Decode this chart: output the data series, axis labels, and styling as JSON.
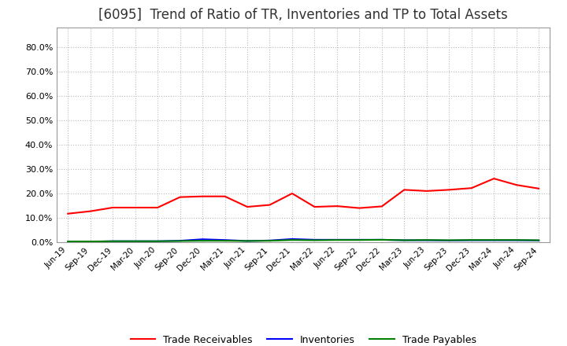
{
  "title": "[6095]  Trend of Ratio of TR, Inventories and TP to Total Assets",
  "title_fontsize": 12,
  "ylim": [
    0.0,
    0.88
  ],
  "yticks": [
    0.0,
    0.1,
    0.2,
    0.3,
    0.4,
    0.5,
    0.6,
    0.7,
    0.8
  ],
  "x_labels": [
    "Jun-19",
    "Sep-19",
    "Dec-19",
    "Mar-20",
    "Jun-20",
    "Sep-20",
    "Dec-20",
    "Mar-21",
    "Jun-21",
    "Sep-21",
    "Dec-21",
    "Mar-22",
    "Jun-22",
    "Sep-22",
    "Dec-22",
    "Mar-23",
    "Jun-23",
    "Sep-23",
    "Dec-23",
    "Mar-24",
    "Jun-24",
    "Sep-24"
  ],
  "trade_receivables": [
    0.117,
    0.127,
    0.142,
    0.142,
    0.142,
    0.185,
    0.188,
    0.188,
    0.145,
    0.153,
    0.2,
    0.145,
    0.148,
    0.14,
    0.147,
    0.215,
    0.21,
    0.215,
    0.222,
    0.261,
    0.235,
    0.22
  ],
  "inventories": [
    0.002,
    0.002,
    0.004,
    0.004,
    0.004,
    0.006,
    0.012,
    0.009,
    0.005,
    0.007,
    0.013,
    0.01,
    0.01,
    0.01,
    0.01,
    0.008,
    0.008,
    0.007,
    0.008,
    0.008,
    0.008,
    0.007
  ],
  "trade_payables": [
    0.003,
    0.003,
    0.004,
    0.004,
    0.004,
    0.005,
    0.006,
    0.006,
    0.005,
    0.006,
    0.009,
    0.008,
    0.009,
    0.009,
    0.01,
    0.008,
    0.009,
    0.008,
    0.009,
    0.009,
    0.009,
    0.008
  ],
  "tr_color": "#FF0000",
  "inv_color": "#0000FF",
  "tp_color": "#008000",
  "background_color": "#FFFFFF",
  "plot_bg_color": "#FFFFFF",
  "grid_color": "#BBBBBB",
  "legend_labels": [
    "Trade Receivables",
    "Inventories",
    "Trade Payables"
  ]
}
